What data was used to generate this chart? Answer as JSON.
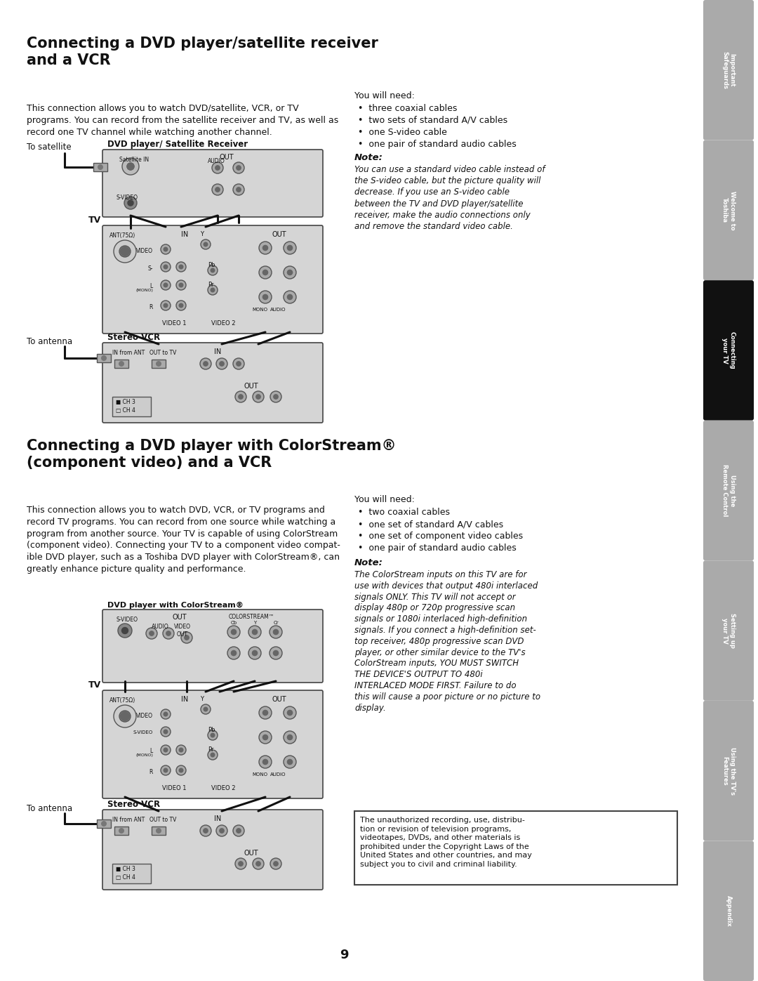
{
  "page_bg": "#ffffff",
  "sidebar_bg": "#aaaaaa",
  "sidebar_active_bg": "#111111",
  "sidebar_tabs": [
    "Important\nSafeguards",
    "Welcome to\nToshiba",
    "Connecting\nyour TV",
    "Using the\nRemote Control",
    "Setting up\nyour TV",
    "Using the TV's\nFeatures",
    "Appendix"
  ],
  "sidebar_active_index": 2,
  "title1": "Connecting a DVD player/satellite receiver\nand a VCR",
  "title2": "Connecting a DVD player with ColorStream®\n(component video) and a VCR",
  "body1": "This connection allows you to watch DVD/satellite, VCR, or TV\nprograms. You can record from the satellite receiver and TV, as well as\nrecord one TV channel while watching another channel.",
  "body2": "This connection allows you to watch DVD, VCR, or TV programs and\nrecord TV programs. You can record from one source while watching a\nprogram from another source. Your TV is capable of using ColorStream\n(component video). Connecting your TV to a component video compat-\nible DVD player, such as a Toshiba DVD player with ColorStream®, can\ngreatly enhance picture quality and performance.",
  "need1_title": "You will need:",
  "need1_items": [
    "three coaxial cables",
    "two sets of standard A/V cables",
    "one S-video cable",
    "one pair of standard audio cables"
  ],
  "note1_title": "Note:",
  "note1_body": "You can use a standard video cable instead of\nthe S-video cable, but the picture quality will\ndecrease. If you use an S-video cable\nbetween the TV and DVD player/satellite\nreceiver, make the audio connections only\nand remove the standard video cable.",
  "need2_title": "You will need:",
  "need2_items": [
    "two coaxial cables",
    "one set of standard A/V cables",
    "one set of component video cables",
    "one pair of standard audio cables"
  ],
  "note2_title": "Note:",
  "note2_body": "The ColorStream inputs on this TV are for\nuse with devices that output 480i interlaced\nsignals ONLY. This TV will not accept or\ndisplay 480p or 720p progressive scan\nsignals or 1080i interlaced high-definition\nsignals. If you connect a high-definition set-\ntop receiver, 480p progressive scan DVD\nplayer, or other similar device to the TV's\nColorStream inputs, YOU MUST SWITCH\nTHE DEVICE'S OUTPUT TO 480i\nINTERLACED MODE FIRST. Failure to do\nthis will cause a poor picture or no picture to\ndisplay.",
  "warning_text": "The unauthorized recording, use, distribu-\ntion or revision of television programs,\nvideotapes, DVDs, and other materials is\nprohibited under the Copyright Laws of the\nUnited States and other countries, and may\nsubject you to civil and criminal liability.",
  "page_number": "9",
  "device_fill": "#d5d5d5",
  "device_stroke": "#444444"
}
